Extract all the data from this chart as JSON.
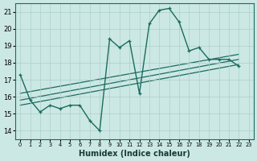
{
  "xlabel": "Humidex (Indice chaleur)",
  "background_color": "#cce8e4",
  "grid_color": "#aacfcb",
  "line_color": "#1a6b5e",
  "xlim": [
    -0.5,
    23.5
  ],
  "ylim": [
    13.5,
    21.5
  ],
  "yticks": [
    14,
    15,
    16,
    17,
    18,
    19,
    20,
    21
  ],
  "xticks": [
    0,
    1,
    2,
    3,
    4,
    5,
    6,
    7,
    8,
    9,
    10,
    11,
    12,
    13,
    14,
    15,
    16,
    17,
    18,
    19,
    20,
    21,
    22,
    23
  ],
  "main_x": [
    0,
    1,
    2,
    3,
    4,
    5,
    6,
    7,
    8,
    9,
    10,
    11,
    12,
    13,
    14,
    15,
    16,
    17,
    18,
    19,
    20,
    21,
    22
  ],
  "main_y": [
    17.3,
    15.8,
    15.1,
    15.5,
    15.3,
    15.5,
    15.5,
    14.6,
    14.0,
    19.4,
    18.9,
    19.3,
    16.2,
    20.3,
    21.1,
    21.2,
    20.4,
    18.7,
    18.9,
    18.2,
    18.2,
    18.2,
    17.8
  ],
  "trend_lines": [
    {
      "x0": 0,
      "x1": 22,
      "y0": 15.5,
      "y1": 17.9
    },
    {
      "x0": 0,
      "x1": 22,
      "y0": 15.8,
      "y1": 18.2
    },
    {
      "x0": 0,
      "x1": 22,
      "y0": 16.2,
      "y1": 18.5
    }
  ]
}
